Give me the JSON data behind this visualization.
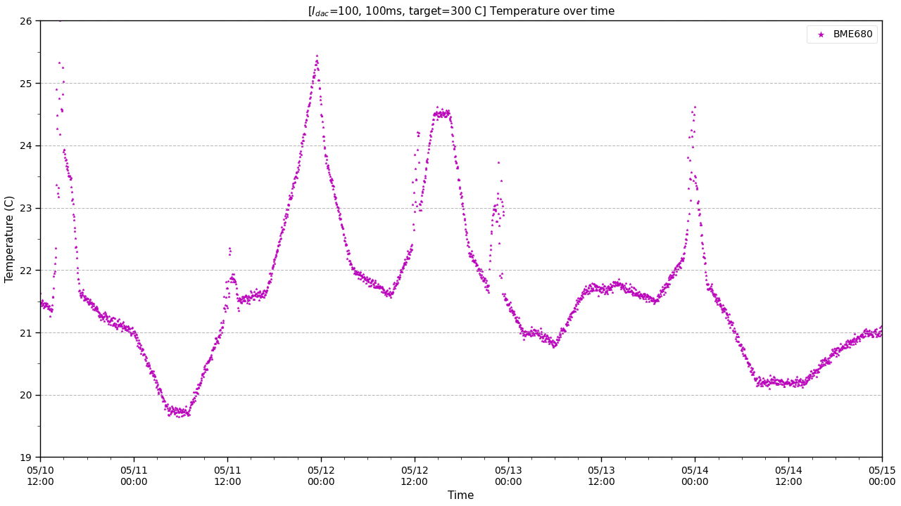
{
  "title": "[$I_{dac}$=100, 100ms, target=300 C] Temperature over time",
  "xlabel": "Time",
  "ylabel": "Temperature (C)",
  "ylim": [
    19,
    26
  ],
  "xlim_start": [
    2021,
    5,
    10,
    12,
    0
  ],
  "xlim_end": [
    2021,
    5,
    15,
    0,
    0
  ],
  "color": "#BB00BB",
  "marker": "*",
  "markersize": 2.5,
  "legend_label": "BME680",
  "background_color": "#ffffff",
  "grid_color": "#aaaaaa",
  "tick_interval_hours": 12,
  "title_fontsize": 11,
  "axis_fontsize": 11
}
